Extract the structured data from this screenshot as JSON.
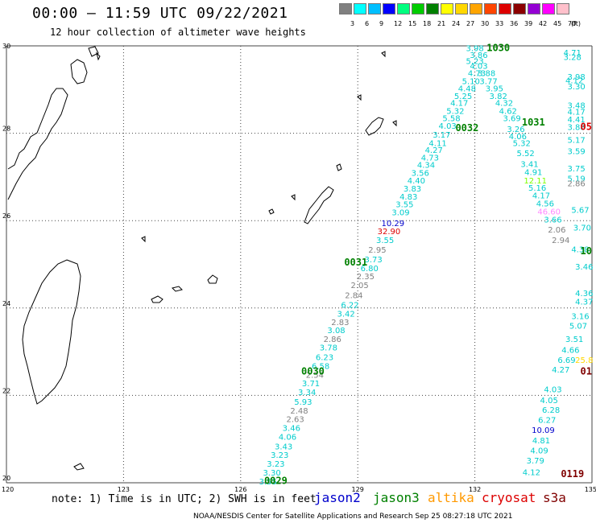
{
  "header": {
    "title": "00:00 – 11:59 UTC 09/22/2021",
    "subtitle": "12 hour collection of altimeter wave heights"
  },
  "legend": {
    "unit": "(ft)",
    "bins": [
      {
        "label": "3",
        "color": "#808080"
      },
      {
        "label": "6",
        "color": "#00ffff"
      },
      {
        "label": "9",
        "color": "#00bfff"
      },
      {
        "label": "12",
        "color": "#0000ff"
      },
      {
        "label": "15",
        "color": "#00ff7f"
      },
      {
        "label": "18",
        "color": "#00cc00"
      },
      {
        "label": "21",
        "color": "#008000"
      },
      {
        "label": "24",
        "color": "#ffff00"
      },
      {
        "label": "27",
        "color": "#ffd700"
      },
      {
        "label": "30",
        "color": "#ffa500"
      },
      {
        "label": "33",
        "color": "#ff4500"
      },
      {
        "label": "36",
        "color": "#dd0000"
      },
      {
        "label": "39",
        "color": "#8b0000"
      },
      {
        "label": "42",
        "color": "#9400d3"
      },
      {
        "label": "45",
        "color": "#ff00ff"
      },
      {
        "label": "70",
        "color": "#ffc0cb"
      }
    ]
  },
  "map": {
    "lon_ticks": [
      "120",
      "123",
      "126",
      "129",
      "132",
      "135"
    ],
    "lat_ticks": [
      "30",
      "28",
      "26",
      "24",
      "22",
      "20"
    ],
    "lon_range": [
      120,
      135
    ],
    "lat_range": [
      20,
      30
    ]
  },
  "track_times": [
    {
      "text": "1030",
      "lon": 132.6,
      "lat": 29.95,
      "color": "#008000"
    },
    {
      "text": "0032",
      "lon": 131.8,
      "lat": 28.12,
      "color": "#008000"
    },
    {
      "text": "1031",
      "lon": 133.5,
      "lat": 28.25,
      "color": "#008000"
    },
    {
      "text": "0031",
      "lon": 128.95,
      "lat": 25.05,
      "color": "#008000"
    },
    {
      "text": "0030",
      "lon": 127.85,
      "lat": 22.55,
      "color": "#008000"
    },
    {
      "text": "0029",
      "lon": 126.9,
      "lat": 20.05,
      "color": "#008000"
    },
    {
      "text": "0119",
      "lon": 134.5,
      "lat": 20.2,
      "color": "#800000"
    },
    {
      "text": "05",
      "lon": 135.0,
      "lat": 28.15,
      "color": "#dd0000"
    },
    {
      "text": "10",
      "lon": 135.0,
      "lat": 25.3,
      "color": "#008000"
    },
    {
      "text": "01",
      "lon": 135.0,
      "lat": 22.55,
      "color": "#800000"
    }
  ],
  "observations": [
    {
      "text": "3.98",
      "lon": 132.0,
      "lat": 29.95,
      "color": "#00cccc"
    },
    {
      "text": "3.86",
      "lon": 132.1,
      "lat": 29.8,
      "color": "#00cccc"
    },
    {
      "text": "5.23",
      "lon": 132.0,
      "lat": 29.66,
      "color": "#00cccc"
    },
    {
      "text": "4.03",
      "lon": 132.1,
      "lat": 29.55,
      "color": "#00cccc"
    },
    {
      "text": "4.73",
      "lon": 132.05,
      "lat": 29.38,
      "color": "#00cccc"
    },
    {
      "text": "3.88",
      "lon": 132.3,
      "lat": 29.38,
      "color": "#00cccc"
    },
    {
      "text": "5.10",
      "lon": 131.9,
      "lat": 29.2,
      "color": "#00cccc"
    },
    {
      "text": "3.77",
      "lon": 132.35,
      "lat": 29.2,
      "color": "#00cccc"
    },
    {
      "text": "4.48",
      "lon": 131.8,
      "lat": 29.03,
      "color": "#00cccc"
    },
    {
      "text": "3.95",
      "lon": 132.5,
      "lat": 29.03,
      "color": "#00cccc"
    },
    {
      "text": "5.25",
      "lon": 131.7,
      "lat": 28.86,
      "color": "#00cccc"
    },
    {
      "text": "3.82",
      "lon": 132.6,
      "lat": 28.86,
      "color": "#00cccc"
    },
    {
      "text": "4.17",
      "lon": 131.6,
      "lat": 28.7,
      "color": "#00cccc"
    },
    {
      "text": "4.32",
      "lon": 132.75,
      "lat": 28.7,
      "color": "#00cccc"
    },
    {
      "text": "5.32",
      "lon": 131.5,
      "lat": 28.52,
      "color": "#00cccc"
    },
    {
      "text": "4.62",
      "lon": 132.85,
      "lat": 28.52,
      "color": "#00cccc"
    },
    {
      "text": "5.58",
      "lon": 131.4,
      "lat": 28.35,
      "color": "#00cccc"
    },
    {
      "text": "3.69",
      "lon": 132.95,
      "lat": 28.35,
      "color": "#00cccc"
    },
    {
      "text": "4.03",
      "lon": 131.3,
      "lat": 28.18,
      "color": "#00cccc"
    },
    {
      "text": "3.26",
      "lon": 133.05,
      "lat": 28.1,
      "color": "#00cccc"
    },
    {
      "text": "3.17",
      "lon": 131.15,
      "lat": 27.97,
      "color": "#00cccc"
    },
    {
      "text": "4.06",
      "lon": 133.1,
      "lat": 27.94,
      "color": "#00cccc"
    },
    {
      "text": "4.11",
      "lon": 131.05,
      "lat": 27.78,
      "color": "#00cccc"
    },
    {
      "text": "5.32",
      "lon": 133.2,
      "lat": 27.78,
      "color": "#00cccc"
    },
    {
      "text": "4.27",
      "lon": 130.95,
      "lat": 27.62,
      "color": "#00cccc"
    },
    {
      "text": "5.52",
      "lon": 133.3,
      "lat": 27.55,
      "color": "#00cccc"
    },
    {
      "text": "4.73",
      "lon": 130.85,
      "lat": 27.45,
      "color": "#00cccc"
    },
    {
      "text": "3.41",
      "lon": 133.4,
      "lat": 27.3,
      "color": "#00cccc"
    },
    {
      "text": "4.34",
      "lon": 130.75,
      "lat": 27.28,
      "color": "#00cccc"
    },
    {
      "text": "4.91",
      "lon": 133.5,
      "lat": 27.12,
      "color": "#00cccc"
    },
    {
      "text": "3.56",
      "lon": 130.6,
      "lat": 27.1,
      "color": "#00cccc"
    },
    {
      "text": "12.11",
      "lon": 133.55,
      "lat": 26.92,
      "color": "#7fff00"
    },
    {
      "text": "4.40",
      "lon": 130.5,
      "lat": 26.92,
      "color": "#00cccc"
    },
    {
      "text": "5.16",
      "lon": 133.6,
      "lat": 26.76,
      "color": "#00cccc"
    },
    {
      "text": "3.83",
      "lon": 130.4,
      "lat": 26.74,
      "color": "#00cccc"
    },
    {
      "text": "4.17",
      "lon": 133.7,
      "lat": 26.58,
      "color": "#00cccc"
    },
    {
      "text": "4.83",
      "lon": 130.3,
      "lat": 26.56,
      "color": "#00cccc"
    },
    {
      "text": "4.56",
      "lon": 133.8,
      "lat": 26.4,
      "color": "#00cccc"
    },
    {
      "text": "3.55",
      "lon": 130.2,
      "lat": 26.38,
      "color": "#00cccc"
    },
    {
      "text": "46.60",
      "lon": 133.9,
      "lat": 26.22,
      "color": "#ff88ff"
    },
    {
      "text": "3.09",
      "lon": 130.1,
      "lat": 26.2,
      "color": "#00cccc"
    },
    {
      "text": "3.66",
      "lon": 134.0,
      "lat": 26.03,
      "color": "#00cccc"
    },
    {
      "text": "10.29",
      "lon": 129.9,
      "lat": 25.95,
      "color": "#0000cc"
    },
    {
      "text": "32.90",
      "lon": 129.8,
      "lat": 25.76,
      "color": "#dd0000"
    },
    {
      "text": "2.06",
      "lon": 134.1,
      "lat": 25.8,
      "color": "#808080"
    },
    {
      "text": "3.55",
      "lon": 129.7,
      "lat": 25.56,
      "color": "#00cccc"
    },
    {
      "text": "2.94",
      "lon": 134.2,
      "lat": 25.56,
      "color": "#808080"
    },
    {
      "text": "2.95",
      "lon": 129.5,
      "lat": 25.34,
      "color": "#808080"
    },
    {
      "text": "3.73",
      "lon": 129.4,
      "lat": 25.12,
      "color": "#00cccc"
    },
    {
      "text": "6.80",
      "lon": 129.3,
      "lat": 24.92,
      "color": "#00cccc"
    },
    {
      "text": "2.35",
      "lon": 129.2,
      "lat": 24.73,
      "color": "#808080"
    },
    {
      "text": "2.05",
      "lon": 129.05,
      "lat": 24.53,
      "color": "#808080"
    },
    {
      "text": "2.84",
      "lon": 128.9,
      "lat": 24.3,
      "color": "#808080"
    },
    {
      "text": "6.22",
      "lon": 128.8,
      "lat": 24.08,
      "color": "#00cccc"
    },
    {
      "text": "3.42",
      "lon": 128.7,
      "lat": 23.88,
      "color": "#00cccc"
    },
    {
      "text": "2.83",
      "lon": 128.55,
      "lat": 23.68,
      "color": "#808080"
    },
    {
      "text": "3.08",
      "lon": 128.45,
      "lat": 23.5,
      "color": "#00cccc"
    },
    {
      "text": "2.86",
      "lon": 128.35,
      "lat": 23.3,
      "color": "#808080"
    },
    {
      "text": "3.78",
      "lon": 128.25,
      "lat": 23.1,
      "color": "#00cccc"
    },
    {
      "text": "6.23",
      "lon": 128.15,
      "lat": 22.88,
      "color": "#00cccc"
    },
    {
      "text": "6.58",
      "lon": 128.05,
      "lat": 22.68,
      "color": "#00cccc"
    },
    {
      "text": "2.54",
      "lon": 127.9,
      "lat": 22.48,
      "color": "#808080"
    },
    {
      "text": "3.71",
      "lon": 127.8,
      "lat": 22.28,
      "color": "#00cccc"
    },
    {
      "text": "3.34",
      "lon": 127.7,
      "lat": 22.08,
      "color": "#00cccc"
    },
    {
      "text": "5.93",
      "lon": 127.6,
      "lat": 21.86,
      "color": "#00cccc"
    },
    {
      "text": "2.48",
      "lon": 127.5,
      "lat": 21.66,
      "color": "#808080"
    },
    {
      "text": "2.63",
      "lon": 127.4,
      "lat": 21.46,
      "color": "#808080"
    },
    {
      "text": "3.46",
      "lon": 127.3,
      "lat": 21.26,
      "color": "#00cccc"
    },
    {
      "text": "4.06",
      "lon": 127.2,
      "lat": 21.06,
      "color": "#00cccc"
    },
    {
      "text": "3.43",
      "lon": 127.1,
      "lat": 20.84,
      "color": "#00cccc"
    },
    {
      "text": "3.23",
      "lon": 127.0,
      "lat": 20.64,
      "color": "#00cccc"
    },
    {
      "text": "3.23",
      "lon": 126.9,
      "lat": 20.44,
      "color": "#00cccc"
    },
    {
      "text": "3.30",
      "lon": 126.8,
      "lat": 20.24,
      "color": "#00cccc"
    },
    {
      "text": "3.55",
      "lon": 126.7,
      "lat": 20.04,
      "color": "#00cccc"
    },
    {
      "text": "4.71",
      "lon": 134.5,
      "lat": 29.85,
      "color": "#00cccc"
    },
    {
      "text": "3.28",
      "lon": 134.5,
      "lat": 29.75,
      "color": "#00cccc"
    },
    {
      "text": "3.98",
      "lon": 134.6,
      "lat": 29.3,
      "color": "#00cccc"
    },
    {
      "text": "4.12",
      "lon": 134.55,
      "lat": 29.22,
      "color": "#00cccc"
    },
    {
      "text": "3.30",
      "lon": 134.6,
      "lat": 29.08,
      "color": "#00cccc"
    },
    {
      "text": "3.48",
      "lon": 134.6,
      "lat": 28.65,
      "color": "#00cccc"
    },
    {
      "text": "4.17",
      "lon": 134.6,
      "lat": 28.5,
      "color": "#00cccc"
    },
    {
      "text": "4.41",
      "lon": 134.6,
      "lat": 28.32,
      "color": "#00cccc"
    },
    {
      "text": "3.88",
      "lon": 134.6,
      "lat": 28.15,
      "color": "#00cccc"
    },
    {
      "text": "5.17",
      "lon": 134.6,
      "lat": 27.85,
      "color": "#00cccc"
    },
    {
      "text": "3.59",
      "lon": 134.6,
      "lat": 27.6,
      "color": "#00cccc"
    },
    {
      "text": "3.75",
      "lon": 134.6,
      "lat": 27.2,
      "color": "#00cccc"
    },
    {
      "text": "5.19",
      "lon": 134.6,
      "lat": 26.97,
      "color": "#00cccc"
    },
    {
      "text": "2.86",
      "lon": 134.6,
      "lat": 26.86,
      "color": "#808080"
    },
    {
      "text": "5.67",
      "lon": 134.7,
      "lat": 26.25,
      "color": "#00cccc"
    },
    {
      "text": "3.70",
      "lon": 134.75,
      "lat": 25.85,
      "color": "#00cccc"
    },
    {
      "text": "4.38",
      "lon": 134.7,
      "lat": 25.35,
      "color": "#00cccc"
    },
    {
      "text": "3.46",
      "lon": 134.8,
      "lat": 24.95,
      "color": "#00cccc"
    },
    {
      "text": "4.36",
      "lon": 134.8,
      "lat": 24.35,
      "color": "#00cccc"
    },
    {
      "text": "4.37",
      "lon": 134.8,
      "lat": 24.15,
      "color": "#00cccc"
    },
    {
      "text": "3.16",
      "lon": 134.7,
      "lat": 23.82,
      "color": "#00cccc"
    },
    {
      "text": "5.07",
      "lon": 134.65,
      "lat": 23.6,
      "color": "#00cccc"
    },
    {
      "text": "3.51",
      "lon": 134.55,
      "lat": 23.3,
      "color": "#00cccc"
    },
    {
      "text": "4.66",
      "lon": 134.45,
      "lat": 23.05,
      "color": "#00cccc"
    },
    {
      "text": "6.69",
      "lon": 134.35,
      "lat": 22.82,
      "color": "#00cccc"
    },
    {
      "text": "25.8",
      "lon": 134.8,
      "lat": 22.82,
      "color": "#ffd700"
    },
    {
      "text": "4.27",
      "lon": 134.2,
      "lat": 22.6,
      "color": "#00cccc"
    },
    {
      "text": "4.03",
      "lon": 134.0,
      "lat": 22.15,
      "color": "#00cccc"
    },
    {
      "text": "4.05",
      "lon": 133.9,
      "lat": 21.9,
      "color": "#00cccc"
    },
    {
      "text": "6.28",
      "lon": 133.95,
      "lat": 21.68,
      "color": "#00cccc"
    },
    {
      "text": "6.27",
      "lon": 133.85,
      "lat": 21.45,
      "color": "#00cccc"
    },
    {
      "text": "10.09",
      "lon": 133.75,
      "lat": 21.22,
      "color": "#0000cc"
    },
    {
      "text": "4.81",
      "lon": 133.7,
      "lat": 20.98,
      "color": "#00cccc"
    },
    {
      "text": "4.09",
      "lon": 133.65,
      "lat": 20.75,
      "color": "#00cccc"
    },
    {
      "text": "3.79",
      "lon": 133.55,
      "lat": 20.52,
      "color": "#00cccc"
    },
    {
      "text": "4.12",
      "lon": 133.45,
      "lat": 20.25,
      "color": "#00cccc"
    }
  ],
  "footer": {
    "note": "note: 1) Time is in UTC; 2) SWH is in feet",
    "satellites": [
      {
        "name": "jason2",
        "color": "#0000cc"
      },
      {
        "name": "jason3",
        "color": "#008000"
      },
      {
        "name": "altika",
        "color": "#ff9900"
      },
      {
        "name": "cryosat",
        "color": "#dd0000"
      },
      {
        "name": "s3a",
        "color": "#800000"
      }
    ],
    "credit": "NOAA/NESDIS Center for Satellite Applications and Research    Sep 25 08:27:18 UTC 2021"
  }
}
